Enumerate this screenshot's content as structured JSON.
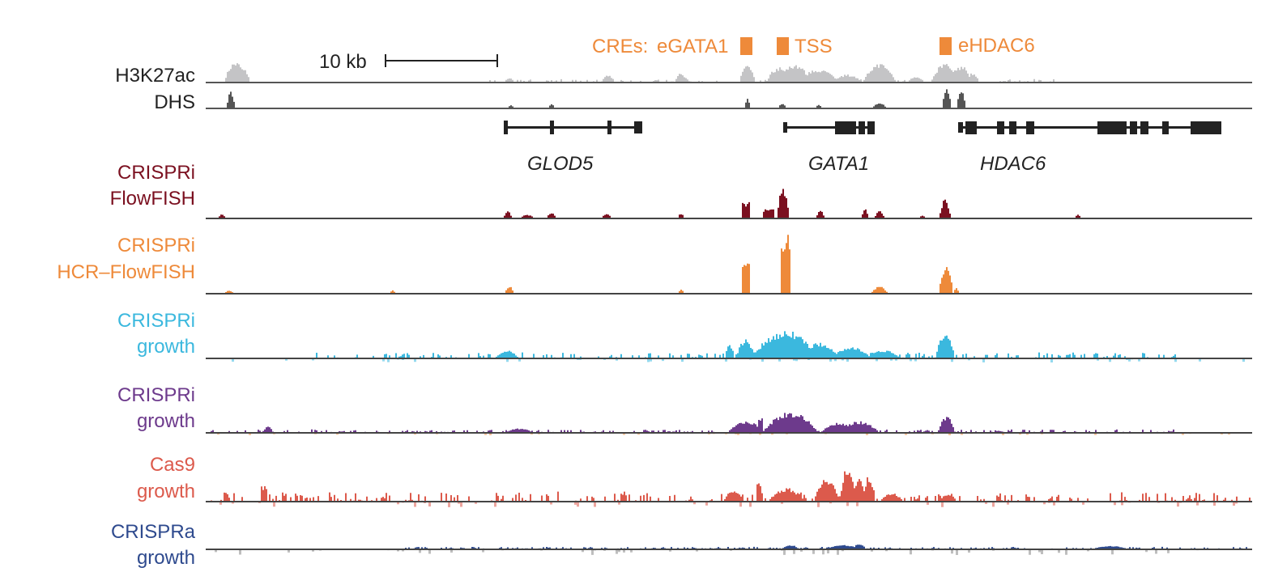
{
  "scale_bar": {
    "label": "10 kb"
  },
  "cre": {
    "color": "#ee8a3a",
    "prefix": "CREs:",
    "labels": [
      "eGATA1",
      "TSS",
      "eHDAC6"
    ]
  },
  "top_tracks": [
    {
      "id": "h3k27ac",
      "label": "H3K27ac",
      "color": "#c4c4c6"
    },
    {
      "id": "dhs",
      "label": "DHS",
      "color": "#555555"
    }
  ],
  "genes": [
    {
      "name": "GLOD5"
    },
    {
      "name": "GATA1"
    },
    {
      "name": "HDAC6"
    }
  ],
  "screen_tracks": [
    {
      "id": "crispri-flowfish",
      "lines": [
        "CRISPRi",
        "FlowFISH"
      ],
      "color": "#7b1020"
    },
    {
      "id": "crispri-hcr-flowfish",
      "lines": [
        "CRISPRi",
        "HCR–FlowFISH"
      ],
      "color": "#ee8a3a"
    },
    {
      "id": "crispri-growth-1",
      "lines": [
        "CRISPRi",
        "growth"
      ],
      "color": "#3bb8de"
    },
    {
      "id": "crispri-growth-2",
      "lines": [
        "CRISPRi",
        "growth"
      ],
      "color": "#6d3a8c"
    },
    {
      "id": "cas9-growth",
      "lines": [
        "Cas9",
        "growth"
      ],
      "color": "#dc5a4c"
    },
    {
      "id": "crispra-growth",
      "lines": [
        "CRISPRa",
        "growth"
      ],
      "color": "#2e4a8e"
    }
  ]
}
